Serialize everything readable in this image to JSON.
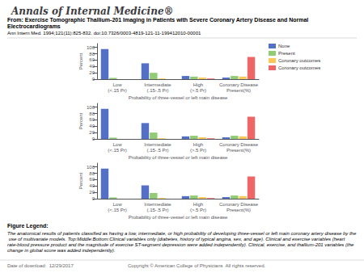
{
  "title": "Annals of Internal Medicine®",
  "subtitle": "From: Exercise Tomographic Thallium-201 Imaging in Patients with Severe Coronary Artery Disease and Normal Electrocardiograms",
  "annotations": [
    "Ann Intern Med. 1994;121(11):825-832. doi:10.7326/0003-4819-121-11-199412010-00001",
    "Figure Legend:",
    "The anatomical results of patients classified as having a low, intermediate, or high probability of developing three-vessel or left main coronary artery disease by the use of multivariate models. Top:Middle:Bottom:Clinical variables only (diabetes, history of typical angina, sex, and age). Clinical and exercise variables (heart rate-blood pressure product and the magnitude of exercise ST-segment depression were added independently). Clinical, exercise, and thallium-201 variables (the change in global score was added independently).",
    "Date of download:  12/29/2017",
    "Copyright © American College of Physicians  All rights reserved."
  ],
  "chart_data": [
    {
      "type": "bar",
      "categories": [
        "Low\n(<.15 Pr)",
        "Intermediate\n(.15-.5 Pr)",
        "High\n(>.5 Pr)",
        "Coronary Disease\nPresent(%)"
      ],
      "series": [
        {
          "name": "None",
          "color": "#5470c6",
          "values": [
            95,
            50,
            10,
            5
          ]
        },
        {
          "name": "Present",
          "color": "#91cc75",
          "values": [
            4,
            20,
            8,
            10
          ]
        },
        {
          "name": "Coronary outcomes",
          "color": "#fac858",
          "values": [
            0,
            2,
            5,
            8
          ]
        },
        {
          "name": "Coronary outcomes",
          "color": "#ee6666",
          "values": [
            0,
            0,
            2,
            70
          ]
        }
      ],
      "xlabel": "Probability of three-vessel or left main disease",
      "ylabel": "Percent",
      "ylim": [
        0,
        112
      ],
      "yticks": [
        0,
        20,
        40,
        60,
        80,
        100
      ],
      "grid": false,
      "legend": "right"
    },
    {
      "type": "bar",
      "categories": [
        "Low\n(<.15 Pr)",
        "Intermediate\n(.15-.5 Pr)",
        "High\n(>.5 Pr)",
        "Coronary Disease\nPresent(%)"
      ],
      "series": [
        {
          "name": "None",
          "color": "#5470c6",
          "values": [
            95,
            50,
            8,
            5
          ]
        },
        {
          "name": "Present",
          "color": "#91cc75",
          "values": [
            4,
            20,
            10,
            10
          ]
        },
        {
          "name": "Coronary outcomes",
          "color": "#fac858",
          "values": [
            0,
            2,
            5,
            8
          ]
        },
        {
          "name": "Coronary outcomes",
          "color": "#ee6666",
          "values": [
            0,
            0,
            2,
            70
          ]
        }
      ],
      "xlabel": "Probability of three-vessel or left main disease",
      "ylabel": "Percent",
      "ylim": [
        0,
        112
      ],
      "yticks": [
        0,
        20,
        40,
        60,
        80,
        100
      ],
      "grid": false
    },
    {
      "type": "bar",
      "categories": [
        "Low\n(<.15 Pr)",
        "Intermediate\n(.15-.5 Pr)",
        "High\n(>.5 Pr)",
        "Coronary Disease\nPresent(%)"
      ],
      "series": [
        {
          "name": "None",
          "color": "#5470c6",
          "values": [
            95,
            42,
            8,
            5
          ]
        },
        {
          "name": "Present",
          "color": "#91cc75",
          "values": [
            4,
            18,
            10,
            10
          ]
        },
        {
          "name": "Coronary outcomes",
          "color": "#fac858",
          "values": [
            0,
            2,
            5,
            8
          ]
        },
        {
          "name": "Coronary outcomes",
          "color": "#ee6666",
          "values": [
            0,
            0,
            2,
            70
          ]
        }
      ],
      "xlabel": "Probability of three-vessel or left main disease",
      "ylabel": "Percent",
      "ylim": [
        0,
        112
      ],
      "yticks": [
        0,
        20,
        40,
        60,
        80,
        100
      ],
      "grid": false
    }
  ]
}
